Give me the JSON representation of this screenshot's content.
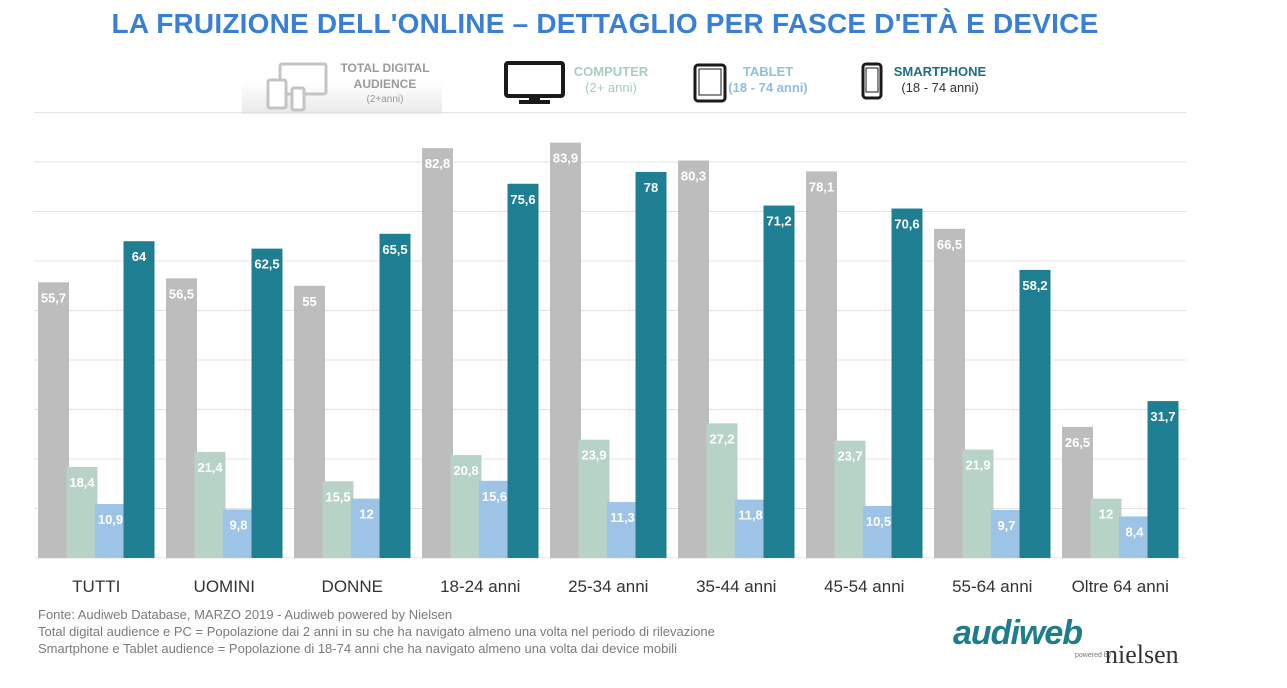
{
  "title": "LA FRUIZIONE DELL'ONLINE – DETTAGLIO PER FASCE D'ETÀ E DEVICE",
  "legend": {
    "total": {
      "line1": "TOTAL DIGITAL",
      "line2": "AUDIENCE",
      "line3": "(2+anni)",
      "color": "#bdbdbd"
    },
    "computer": {
      "line1": "COMPUTER",
      "line2": "(2+ anni)",
      "color": "#b7d3c8"
    },
    "tablet": {
      "line1": "TABLET",
      "line2": "(18 - 74 anni)",
      "color": "#9dc3e6"
    },
    "smartphone": {
      "line1": "SMARTPHONE",
      "line2": "(18 - 74 anni)",
      "color": "#1f7f92"
    }
  },
  "chart_data": {
    "type": "bar",
    "categories": [
      "TUTTI",
      "UOMINI",
      "DONNE",
      "18-24 anni",
      "25-34 anni",
      "35-44 anni",
      "45-54 anni",
      "55-64 anni",
      "Oltre 64 anni"
    ],
    "series": [
      {
        "name": "TOTAL DIGITAL AUDIENCE",
        "color": "#bdbdbd",
        "values": [
          55.7,
          56.5,
          55,
          82.8,
          83.9,
          80.3,
          78.1,
          66.5,
          26.5
        ],
        "labels": [
          "55,7",
          "56,5",
          "55",
          "82,8",
          "83,9",
          "80,3",
          "78,1",
          "66,5",
          "26,5"
        ]
      },
      {
        "name": "COMPUTER",
        "color": "#b7d3c8",
        "values": [
          18.4,
          21.4,
          15.5,
          20.8,
          23.9,
          27.2,
          23.7,
          21.9,
          12
        ],
        "labels": [
          "18,4",
          "21,4",
          "15,5",
          "20,8",
          "23,9",
          "27,2",
          "23,7",
          "21,9",
          "12"
        ]
      },
      {
        "name": "TABLET",
        "color": "#9dc3e6",
        "values": [
          10.9,
          9.8,
          12,
          15.6,
          11.3,
          11.8,
          10.5,
          9.7,
          8.4
        ],
        "labels": [
          "10,9",
          "9,8",
          "12",
          "15,6",
          "11,3",
          "11,8",
          "10,5",
          "9,7",
          "8,4"
        ]
      },
      {
        "name": "SMARTPHONE",
        "color": "#1f7f92",
        "values": [
          64,
          62.5,
          65.5,
          75.6,
          78,
          71.2,
          70.6,
          58.2,
          31.7
        ],
        "labels": [
          "64",
          "62,5",
          "65,5",
          "75,6",
          "78",
          "71,2",
          "70,6",
          "58,2",
          "31,7"
        ]
      }
    ],
    "ylim": [
      0,
      90
    ],
    "grid": true
  },
  "footer": {
    "line1": "Fonte: Audiweb Database, MARZO 2019 - Audiweb powered by Nielsen",
    "line2": "Total digital audience e PC = Popolazione dai 2 anni in su che ha navigato almeno una volta nel periodo di rilevazione",
    "line3": "Smartphone e Tablet audience = Popolazione di 18-74 anni che ha navigato almeno una volta dai device mobili"
  },
  "logo": {
    "brand": "audiweb",
    "powered": "powered by",
    "partner": "nielsen"
  }
}
